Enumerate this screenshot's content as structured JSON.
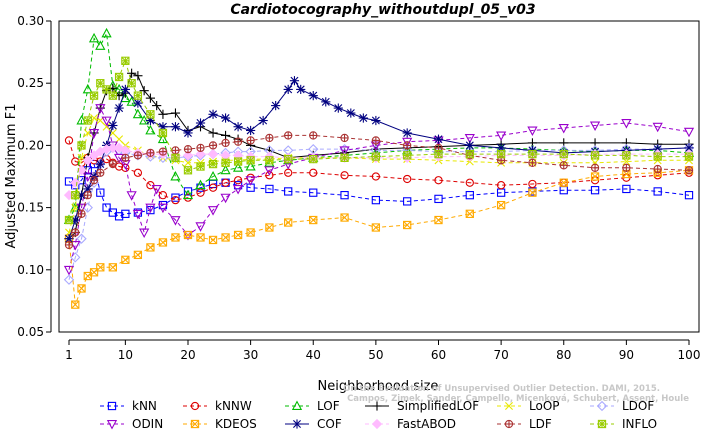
{
  "chart_data": {
    "type": "line",
    "title": "Cardiotocography_withoutdupl_05_v03",
    "xlabel": "Neighborhood size",
    "ylabel": "Adjusted Maximum F1",
    "xlim": [
      1,
      100
    ],
    "ylim": [
      0.05,
      0.3
    ],
    "x_ticks": [
      1,
      10,
      20,
      30,
      40,
      50,
      60,
      70,
      80,
      90,
      100
    ],
    "y_ticks": [
      0.05,
      0.1,
      0.15,
      0.2,
      0.25,
      0.3
    ],
    "grid": false,
    "legend_position": "bottom",
    "watermark": [
      "Campos, Zimek, Sander, Campello, Micenková, Schubert, Assent, Houle",
      "On the Evaluation of Unsupervised Outlier Detection. DAMI, 2015."
    ],
    "series": [
      {
        "name": "kNN",
        "color": "#0000ff",
        "marker": "square",
        "dash": "4,3",
        "x": [
          1,
          2,
          3,
          4,
          5,
          6,
          7,
          8,
          9,
          10,
          12,
          14,
          16,
          18,
          20,
          22,
          24,
          26,
          28,
          30,
          33,
          36,
          40,
          45,
          50,
          55,
          60,
          65,
          70,
          75,
          80,
          85,
          90,
          95,
          100
        ],
        "y": [
          0.171,
          0.168,
          0.172,
          0.18,
          0.185,
          0.162,
          0.15,
          0.146,
          0.143,
          0.145,
          0.146,
          0.148,
          0.152,
          0.158,
          0.163,
          0.166,
          0.169,
          0.17,
          0.168,
          0.166,
          0.165,
          0.163,
          0.162,
          0.16,
          0.156,
          0.155,
          0.157,
          0.16,
          0.162,
          0.163,
          0.164,
          0.164,
          0.165,
          0.163,
          0.16
        ]
      },
      {
        "name": "kNNW",
        "color": "#dd0000",
        "marker": "circle",
        "dash": "4,3",
        "x": [
          1,
          2,
          3,
          4,
          5,
          6,
          7,
          8,
          9,
          10,
          12,
          14,
          16,
          18,
          20,
          22,
          24,
          26,
          28,
          30,
          33,
          36,
          40,
          45,
          50,
          55,
          60,
          65,
          70,
          75,
          80,
          85,
          90,
          95,
          100
        ],
        "y": [
          0.204,
          0.187,
          0.186,
          0.19,
          0.188,
          0.187,
          0.189,
          0.186,
          0.183,
          0.182,
          0.178,
          0.168,
          0.16,
          0.156,
          0.158,
          0.162,
          0.166,
          0.17,
          0.172,
          0.174,
          0.176,
          0.178,
          0.178,
          0.176,
          0.175,
          0.173,
          0.172,
          0.17,
          0.168,
          0.169,
          0.17,
          0.172,
          0.174,
          0.176,
          0.178
        ]
      },
      {
        "name": "LOF",
        "color": "#00bb00",
        "marker": "triangle-up",
        "dash": "4,3",
        "x": [
          1,
          2,
          3,
          4,
          5,
          6,
          7,
          8,
          9,
          10,
          11,
          12,
          13,
          14,
          16,
          18,
          20,
          22,
          24,
          26,
          28,
          30,
          33,
          36,
          40,
          45,
          50,
          55,
          60,
          65,
          70,
          75,
          80,
          85,
          90,
          95,
          100
        ],
        "y": [
          0.14,
          0.15,
          0.22,
          0.245,
          0.286,
          0.28,
          0.29,
          0.248,
          0.245,
          0.238,
          0.235,
          0.225,
          0.22,
          0.212,
          0.205,
          0.175,
          0.16,
          0.168,
          0.175,
          0.18,
          0.182,
          0.183,
          0.186,
          0.188,
          0.19,
          0.192,
          0.194,
          0.196,
          0.197,
          0.198,
          0.198,
          0.197,
          0.196,
          0.195,
          0.196,
          0.196,
          0.194
        ]
      },
      {
        "name": "SimplifiedLOF",
        "color": "#000000",
        "marker": "plus",
        "dash": "",
        "x": [
          1,
          2,
          3,
          4,
          5,
          6,
          7,
          8,
          9,
          10,
          11,
          12,
          13,
          14,
          15,
          16,
          18,
          20,
          22,
          24,
          26,
          28,
          30,
          33,
          36,
          40,
          45,
          50,
          55,
          60,
          65,
          70,
          75,
          80,
          85,
          90,
          95,
          100
        ],
        "y": [
          0.125,
          0.13,
          0.16,
          0.19,
          0.21,
          0.23,
          0.244,
          0.246,
          0.24,
          0.242,
          0.258,
          0.256,
          0.244,
          0.238,
          0.232,
          0.225,
          0.226,
          0.212,
          0.215,
          0.21,
          0.208,
          0.205,
          0.2,
          0.196,
          0.19,
          0.192,
          0.194,
          0.197,
          0.198,
          0.199,
          0.2,
          0.201,
          0.202,
          0.202,
          0.202,
          0.202,
          0.201,
          0.201
        ]
      },
      {
        "name": "LoOP",
        "color": "#e8e800",
        "marker": "x",
        "dash": "4,3",
        "x": [
          1,
          2,
          3,
          4,
          5,
          6,
          7,
          8,
          9,
          10,
          12,
          14,
          16,
          18,
          20,
          22,
          24,
          26,
          28,
          30,
          33,
          36,
          40,
          45,
          50,
          55,
          60,
          65,
          70,
          75,
          80,
          85,
          90,
          95,
          100
        ],
        "y": [
          0.13,
          0.15,
          0.19,
          0.21,
          0.222,
          0.22,
          0.215,
          0.21,
          0.205,
          0.2,
          0.196,
          0.192,
          0.19,
          0.188,
          0.186,
          0.186,
          0.187,
          0.188,
          0.188,
          0.189,
          0.189,
          0.19,
          0.19,
          0.19,
          0.189,
          0.189,
          0.188,
          0.187,
          0.186,
          0.186,
          0.186,
          0.186,
          0.187,
          0.188,
          0.188
        ]
      },
      {
        "name": "LDOF",
        "color": "#aaaaff",
        "marker": "diamond",
        "dash": "4,3",
        "x": [
          1,
          2,
          3,
          4,
          5,
          6,
          7,
          8,
          9,
          10,
          12,
          14,
          16,
          18,
          20,
          22,
          24,
          26,
          28,
          30,
          33,
          36,
          40,
          45,
          50,
          55,
          60,
          65,
          70,
          75,
          80,
          85,
          90,
          95,
          100
        ],
        "y": [
          0.092,
          0.11,
          0.125,
          0.15,
          0.17,
          0.185,
          0.195,
          0.198,
          0.196,
          0.194,
          0.192,
          0.191,
          0.19,
          0.19,
          0.191,
          0.192,
          0.193,
          0.194,
          0.195,
          0.195,
          0.196,
          0.196,
          0.197,
          0.197,
          0.196,
          0.196,
          0.195,
          0.195,
          0.195,
          0.196,
          0.196,
          0.196,
          0.197,
          0.197,
          0.198
        ]
      },
      {
        "name": "ODIN",
        "color": "#9900cc",
        "marker": "triangle-down",
        "dash": "4,3",
        "x": [
          1,
          2,
          3,
          4,
          5,
          6,
          7,
          8,
          9,
          10,
          11,
          12,
          13,
          14,
          15,
          16,
          18,
          20,
          22,
          24,
          26,
          28,
          30,
          33,
          36,
          40,
          45,
          50,
          55,
          60,
          65,
          70,
          75,
          80,
          85,
          90,
          95,
          100
        ],
        "y": [
          0.1,
          0.12,
          0.15,
          0.175,
          0.21,
          0.23,
          0.22,
          0.2,
          0.19,
          0.185,
          0.16,
          0.145,
          0.13,
          0.15,
          0.165,
          0.15,
          0.14,
          0.128,
          0.135,
          0.148,
          0.158,
          0.165,
          0.172,
          0.18,
          0.185,
          0.19,
          0.196,
          0.2,
          0.203,
          0.204,
          0.206,
          0.208,
          0.212,
          0.214,
          0.216,
          0.218,
          0.215,
          0.211
        ]
      },
      {
        "name": "KDEOS",
        "color": "#ffaa00",
        "marker": "square-x",
        "dash": "4,3",
        "x": [
          1,
          2,
          3,
          4,
          5,
          6,
          8,
          10,
          12,
          14,
          16,
          18,
          20,
          22,
          24,
          26,
          28,
          30,
          33,
          36,
          40,
          45,
          50,
          55,
          60,
          65,
          70,
          75,
          80,
          85,
          90,
          95,
          100
        ],
        "y": [
          0.125,
          0.072,
          0.085,
          0.095,
          0.098,
          0.102,
          0.102,
          0.108,
          0.112,
          0.118,
          0.122,
          0.126,
          0.128,
          0.126,
          0.124,
          0.126,
          0.128,
          0.13,
          0.134,
          0.138,
          0.14,
          0.142,
          0.134,
          0.136,
          0.14,
          0.145,
          0.152,
          0.162,
          0.17,
          0.175,
          0.177,
          0.178,
          0.18
        ]
      },
      {
        "name": "COF",
        "color": "#000080",
        "marker": "star",
        "dash": "",
        "x": [
          1,
          2,
          3,
          4,
          5,
          6,
          7,
          8,
          9,
          10,
          12,
          14,
          16,
          18,
          20,
          22,
          24,
          26,
          28,
          30,
          32,
          34,
          36,
          37,
          38,
          40,
          42,
          44,
          46,
          48,
          50,
          55,
          60,
          65,
          70,
          75,
          80,
          85,
          90,
          95,
          100
        ],
        "y": [
          0.125,
          0.14,
          0.16,
          0.165,
          0.175,
          0.185,
          0.2,
          0.216,
          0.23,
          0.245,
          0.234,
          0.22,
          0.215,
          0.215,
          0.21,
          0.218,
          0.225,
          0.222,
          0.215,
          0.212,
          0.22,
          0.232,
          0.245,
          0.252,
          0.245,
          0.24,
          0.235,
          0.23,
          0.226,
          0.222,
          0.22,
          0.21,
          0.205,
          0.2,
          0.198,
          0.196,
          0.194,
          0.195,
          0.196,
          0.197,
          0.198
        ]
      },
      {
        "name": "FastABOD",
        "color": "#ffbbff",
        "marker": "diamond-filled",
        "dash": "4,3",
        "x": [
          1,
          2,
          3,
          4,
          5,
          6,
          7,
          8,
          9,
          10,
          12,
          14,
          16,
          18,
          20,
          22,
          24,
          26,
          28,
          30,
          33,
          36,
          40,
          45,
          50,
          55,
          60,
          65,
          70,
          75,
          80,
          85,
          90,
          95,
          100
        ],
        "y": [
          0.16,
          0.17,
          0.18,
          0.188,
          0.192,
          0.195,
          0.197,
          0.198,
          0.198,
          0.196,
          0.194,
          0.193,
          0.193,
          0.192,
          0.192,
          0.193,
          0.193,
          0.192,
          0.192,
          0.191,
          0.191,
          0.19,
          0.19,
          0.19,
          0.19,
          0.19,
          0.191,
          0.191,
          0.192,
          0.192,
          0.192,
          0.193,
          0.193,
          0.193,
          0.193
        ]
      },
      {
        "name": "LDF",
        "color": "#aa3333",
        "marker": "circle-plus",
        "dash": "4,3",
        "x": [
          1,
          2,
          3,
          4,
          5,
          6,
          8,
          10,
          12,
          14,
          16,
          18,
          20,
          22,
          24,
          26,
          28,
          30,
          33,
          36,
          40,
          45,
          50,
          55,
          60,
          65,
          70,
          75,
          80,
          85,
          90,
          95,
          100
        ],
        "y": [
          0.12,
          0.13,
          0.145,
          0.16,
          0.172,
          0.178,
          0.185,
          0.19,
          0.192,
          0.194,
          0.195,
          0.196,
          0.197,
          0.198,
          0.2,
          0.202,
          0.203,
          0.204,
          0.206,
          0.208,
          0.208,
          0.206,
          0.204,
          0.2,
          0.198,
          0.192,
          0.188,
          0.186,
          0.184,
          0.182,
          0.182,
          0.181,
          0.18
        ]
      },
      {
        "name": "INFLO",
        "color": "#99cc00",
        "marker": "square-star",
        "dash": "4,3",
        "x": [
          1,
          2,
          3,
          4,
          5,
          6,
          7,
          8,
          9,
          10,
          11,
          12,
          14,
          16,
          18,
          20,
          22,
          24,
          26,
          28,
          30,
          33,
          36,
          40,
          45,
          50,
          55,
          60,
          65,
          70,
          75,
          80,
          85,
          90,
          95,
          100
        ],
        "y": [
          0.14,
          0.16,
          0.2,
          0.22,
          0.24,
          0.25,
          0.245,
          0.24,
          0.255,
          0.268,
          0.25,
          0.24,
          0.225,
          0.21,
          0.19,
          0.18,
          0.183,
          0.185,
          0.186,
          0.187,
          0.188,
          0.188,
          0.189,
          0.189,
          0.19,
          0.191,
          0.192,
          0.193,
          0.193,
          0.193,
          0.193,
          0.193,
          0.192,
          0.192,
          0.191,
          0.191
        ]
      }
    ]
  }
}
